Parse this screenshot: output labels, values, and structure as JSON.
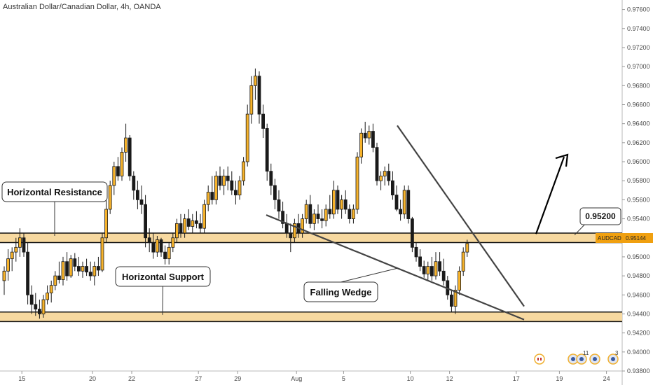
{
  "chart_data": {
    "type": "candlestick",
    "title": "Australian Dollar/Canadian Dollar, 4h, OANDA",
    "symbol": "AUDCAD",
    "last_price": "0.95144",
    "y_axis": {
      "range": [
        0.938,
        0.977
      ],
      "tick_labels": [
        "0.97600",
        "0.97400",
        "0.97200",
        "0.97000",
        "0.96800",
        "0.96600",
        "0.96400",
        "0.96200",
        "0.96000",
        "0.95800",
        "0.95600",
        "0.95400",
        "0.95200",
        "0.95000",
        "0.94800",
        "0.94600",
        "0.94400",
        "0.94200",
        "0.94000",
        "0.93800"
      ]
    },
    "x_axis": {
      "ticks": [
        {
          "label": "15",
          "bar": 2
        },
        {
          "label": "20",
          "bar": 20
        },
        {
          "label": "22",
          "bar": 30
        },
        {
          "label": "27",
          "bar": 47
        },
        {
          "label": "29",
          "bar": 57
        },
        {
          "label": "Aug",
          "bar": 72
        },
        {
          "label": "5",
          "bar": 84
        },
        {
          "label": "10",
          "bar": 101
        },
        {
          "label": "12",
          "bar": 111
        },
        {
          "label": "17",
          "bar": 128
        },
        {
          "label": "19",
          "bar": 139
        },
        {
          "label": "24",
          "bar": 151
        }
      ]
    },
    "candles": [
      [
        0.9475,
        0.949,
        0.946,
        0.9485
      ],
      [
        0.9485,
        0.9508,
        0.9475,
        0.9498
      ],
      [
        0.9498,
        0.951,
        0.9485,
        0.9505
      ],
      [
        0.9505,
        0.952,
        0.9495,
        0.951
      ],
      [
        0.951,
        0.953,
        0.95,
        0.952
      ],
      [
        0.952,
        0.9525,
        0.95,
        0.9505
      ],
      [
        0.9505,
        0.9515,
        0.945,
        0.946
      ],
      [
        0.946,
        0.947,
        0.944,
        0.945
      ],
      [
        0.945,
        0.9462,
        0.9438,
        0.9445
      ],
      [
        0.9445,
        0.9455,
        0.9435,
        0.944
      ],
      [
        0.944,
        0.946,
        0.9436,
        0.9455
      ],
      [
        0.9455,
        0.947,
        0.945,
        0.9462
      ],
      [
        0.9462,
        0.9475,
        0.9452,
        0.947
      ],
      [
        0.947,
        0.9485,
        0.9465,
        0.948
      ],
      [
        0.948,
        0.9495,
        0.9472,
        0.9476
      ],
      [
        0.9476,
        0.95,
        0.947,
        0.9495
      ],
      [
        0.9495,
        0.9505,
        0.9475,
        0.948
      ],
      [
        0.948,
        0.9502,
        0.9478,
        0.9498
      ],
      [
        0.9498,
        0.9504,
        0.9485,
        0.949
      ],
      [
        0.949,
        0.95,
        0.948,
        0.9485
      ],
      [
        0.9485,
        0.9495,
        0.9478,
        0.949
      ],
      [
        0.949,
        0.9498,
        0.948,
        0.9484
      ],
      [
        0.9484,
        0.9495,
        0.9475,
        0.948
      ],
      [
        0.948,
        0.9495,
        0.947,
        0.949
      ],
      [
        0.949,
        0.95,
        0.948,
        0.9486
      ],
      [
        0.9486,
        0.9525,
        0.9484,
        0.952
      ],
      [
        0.952,
        0.956,
        0.9515,
        0.955
      ],
      [
        0.955,
        0.958,
        0.9545,
        0.9575
      ],
      [
        0.9575,
        0.96,
        0.9565,
        0.9595
      ],
      [
        0.9595,
        0.9605,
        0.958,
        0.9585
      ],
      [
        0.9585,
        0.9615,
        0.958,
        0.961
      ],
      [
        0.961,
        0.964,
        0.96,
        0.9625
      ],
      [
        0.9625,
        0.9628,
        0.958,
        0.9585
      ],
      [
        0.9585,
        0.959,
        0.956,
        0.957
      ],
      [
        0.957,
        0.958,
        0.955,
        0.956
      ],
      [
        0.956,
        0.9575,
        0.9545,
        0.9555
      ],
      [
        0.9555,
        0.9565,
        0.951,
        0.952
      ],
      [
        0.952,
        0.953,
        0.9505,
        0.9515
      ],
      [
        0.9515,
        0.9525,
        0.9498,
        0.9505
      ],
      [
        0.9505,
        0.9522,
        0.95,
        0.9518
      ],
      [
        0.9518,
        0.952,
        0.95,
        0.9505
      ],
      [
        0.9505,
        0.9512,
        0.9492,
        0.9498
      ],
      [
        0.9498,
        0.9515,
        0.9492,
        0.951
      ],
      [
        0.951,
        0.9525,
        0.9505,
        0.952
      ],
      [
        0.952,
        0.954,
        0.9515,
        0.9535
      ],
      [
        0.9535,
        0.9545,
        0.952,
        0.9525
      ],
      [
        0.9525,
        0.9545,
        0.952,
        0.954
      ],
      [
        0.954,
        0.955,
        0.9528,
        0.9532
      ],
      [
        0.9532,
        0.9545,
        0.9525,
        0.9538
      ],
      [
        0.9538,
        0.9548,
        0.953,
        0.9535
      ],
      [
        0.9535,
        0.9545,
        0.9525,
        0.953
      ],
      [
        0.953,
        0.956,
        0.9525,
        0.9555
      ],
      [
        0.9555,
        0.9575,
        0.9548,
        0.9568
      ],
      [
        0.9568,
        0.9585,
        0.9555,
        0.956
      ],
      [
        0.956,
        0.959,
        0.9555,
        0.9585
      ],
      [
        0.9585,
        0.9595,
        0.957,
        0.9575
      ],
      [
        0.9575,
        0.9592,
        0.9565,
        0.9585
      ],
      [
        0.9585,
        0.9595,
        0.957,
        0.958
      ],
      [
        0.958,
        0.959,
        0.9565,
        0.957
      ],
      [
        0.957,
        0.958,
        0.9555,
        0.9565
      ],
      [
        0.9565,
        0.9585,
        0.956,
        0.958
      ],
      [
        0.958,
        0.9605,
        0.9575,
        0.96
      ],
      [
        0.96,
        0.966,
        0.9595,
        0.965
      ],
      [
        0.965,
        0.969,
        0.964,
        0.968
      ],
      [
        0.968,
        0.9698,
        0.9665,
        0.969
      ],
      [
        0.969,
        0.9695,
        0.964,
        0.965
      ],
      [
        0.965,
        0.966,
        0.9625,
        0.9635
      ],
      [
        0.9635,
        0.964,
        0.958,
        0.959
      ],
      [
        0.959,
        0.9598,
        0.9565,
        0.9575
      ],
      [
        0.9575,
        0.9582,
        0.955,
        0.956
      ],
      [
        0.956,
        0.957,
        0.954,
        0.9548
      ],
      [
        0.9548,
        0.9558,
        0.953,
        0.9535
      ],
      [
        0.9535,
        0.9545,
        0.952,
        0.9525
      ],
      [
        0.9525,
        0.9535,
        0.9505,
        0.952
      ],
      [
        0.952,
        0.954,
        0.9515,
        0.9535
      ],
      [
        0.9535,
        0.9545,
        0.952,
        0.9525
      ],
      [
        0.9525,
        0.9545,
        0.952,
        0.954
      ],
      [
        0.954,
        0.956,
        0.9535,
        0.9555
      ],
      [
        0.9555,
        0.9565,
        0.953,
        0.9535
      ],
      [
        0.9535,
        0.955,
        0.9528,
        0.9545
      ],
      [
        0.9545,
        0.9555,
        0.9535,
        0.954
      ],
      [
        0.954,
        0.955,
        0.953,
        0.9538
      ],
      [
        0.9538,
        0.9555,
        0.9532,
        0.955
      ],
      [
        0.955,
        0.9565,
        0.954,
        0.9545
      ],
      [
        0.9545,
        0.958,
        0.954,
        0.957
      ],
      [
        0.957,
        0.9575,
        0.9545,
        0.955
      ],
      [
        0.955,
        0.9565,
        0.954,
        0.956
      ],
      [
        0.956,
        0.957,
        0.9545,
        0.955
      ],
      [
        0.955,
        0.9555,
        0.9535,
        0.954
      ],
      [
        0.954,
        0.9555,
        0.9535,
        0.955
      ],
      [
        0.955,
        0.961,
        0.9545,
        0.9605
      ],
      [
        0.9605,
        0.9635,
        0.9598,
        0.963
      ],
      [
        0.963,
        0.9642,
        0.962,
        0.9625
      ],
      [
        0.9625,
        0.9638,
        0.9618,
        0.9632
      ],
      [
        0.9632,
        0.964,
        0.961,
        0.9615
      ],
      [
        0.9615,
        0.962,
        0.9575,
        0.958
      ],
      [
        0.958,
        0.959,
        0.957,
        0.9585
      ],
      [
        0.9585,
        0.9595,
        0.9575,
        0.959
      ],
      [
        0.959,
        0.9598,
        0.9575,
        0.958
      ],
      [
        0.958,
        0.959,
        0.956,
        0.9565
      ],
      [
        0.9565,
        0.9575,
        0.9548,
        0.955
      ],
      [
        0.955,
        0.956,
        0.9538,
        0.9545
      ],
      [
        0.9545,
        0.9575,
        0.954,
        0.957
      ],
      [
        0.957,
        0.9575,
        0.9535,
        0.954
      ],
      [
        0.954,
        0.9542,
        0.9505,
        0.951
      ],
      [
        0.951,
        0.9515,
        0.9495,
        0.95
      ],
      [
        0.95,
        0.9508,
        0.9485,
        0.949
      ],
      [
        0.949,
        0.9496,
        0.9478,
        0.9482
      ],
      [
        0.9482,
        0.9495,
        0.9476,
        0.949
      ],
      [
        0.949,
        0.95,
        0.9475,
        0.948
      ],
      [
        0.948,
        0.9505,
        0.9476,
        0.9495
      ],
      [
        0.9495,
        0.9505,
        0.948,
        0.9485
      ],
      [
        0.9485,
        0.9498,
        0.947,
        0.9475
      ],
      [
        0.9475,
        0.948,
        0.9455,
        0.946
      ],
      [
        0.946,
        0.9465,
        0.9442,
        0.9448
      ],
      [
        0.9448,
        0.947,
        0.944,
        0.9465
      ],
      [
        0.9465,
        0.949,
        0.946,
        0.9485
      ],
      [
        0.9485,
        0.951,
        0.948,
        0.9505
      ],
      [
        0.9505,
        0.9518,
        0.95,
        0.9514
      ]
    ],
    "annotations": {
      "resistance_label": "Horizontal Resistance",
      "support_label": "Horizontal Support",
      "pattern_label": "Falling Wedge",
      "target_label": "0.95200"
    }
  },
  "colors": {
    "candle_fill": "#f7b32b",
    "candle_border": "#1a1a1a",
    "zone_fill": "#f7d9a0",
    "zone_line": "#111111",
    "trendline": "#444444",
    "last_price_tag": "#f0a010"
  },
  "icons": [
    "flag-icon",
    "event-icon",
    "event-icon",
    "event-icon",
    "event-icon"
  ],
  "event_count": "11",
  "event_count2": "3"
}
